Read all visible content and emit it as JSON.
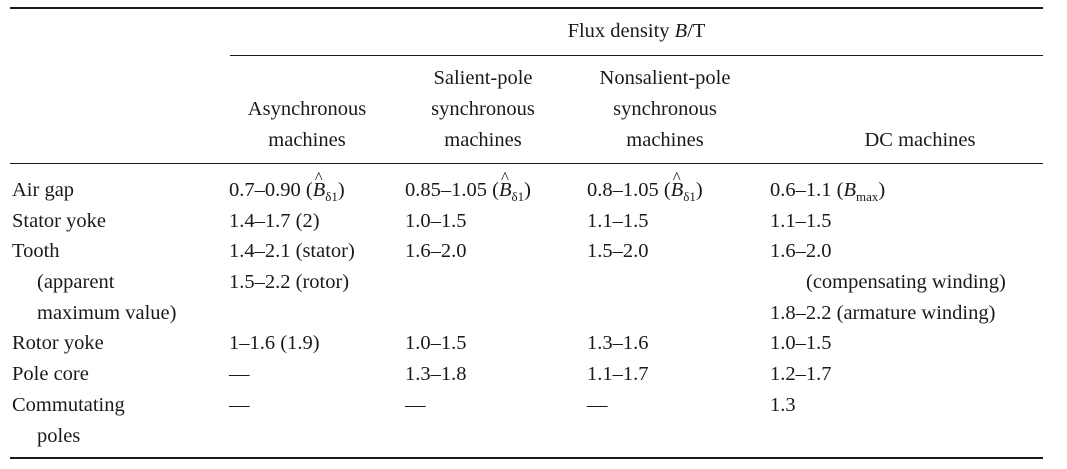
{
  "table": {
    "spanning_header": {
      "text": "Flux density ",
      "var": "B",
      "unit": "/T"
    },
    "columns": [
      {
        "lines": [
          "Asynchronous",
          "machines"
        ]
      },
      {
        "lines": [
          "Salient-pole",
          "synchronous",
          "machines"
        ]
      },
      {
        "lines": [
          "Nonsalient-pole",
          "synchronous",
          "machines"
        ]
      },
      {
        "lines": [
          "DC machines"
        ]
      }
    ],
    "rows": {
      "air_gap": {
        "label": "Air gap",
        "c1": {
          "pre": "0.7–0.90 (",
          "sym": "B",
          "sub": "δ1",
          "post": ")"
        },
        "c2": {
          "pre": "0.85–1.05 (",
          "sym": "B",
          "sub": "δ1",
          "post": ")"
        },
        "c3": {
          "pre": "0.8–1.05 (",
          "sym": "B",
          "sub": "δ1",
          "post": ")"
        },
        "c4": {
          "pre": "0.6–1.1 (",
          "sym": "B",
          "sub": "max",
          "post": ")"
        }
      },
      "stator_yoke": {
        "label": "Stator yoke",
        "c1": "1.4–1.7 (2)",
        "c2": "1.0–1.5",
        "c3": "1.1–1.5",
        "c4": "1.1–1.5"
      },
      "tooth": {
        "label": "Tooth",
        "label_cont": [
          "(apparent",
          "maximum value)"
        ],
        "c1": [
          "1.4–2.1 (stator)",
          "1.5–2.2 (rotor)"
        ],
        "c2": "1.6–2.0",
        "c3": "1.5–2.0",
        "c4": [
          "1.6–2.0",
          "(compensating winding)",
          "1.8–2.2 (armature winding)"
        ]
      },
      "rotor_yoke": {
        "label": "Rotor yoke",
        "c1": "1–1.6 (1.9)",
        "c2": "1.0–1.5",
        "c3": "1.3–1.6",
        "c4": "1.0–1.5"
      },
      "pole_core": {
        "label": "Pole core",
        "c1": "—",
        "c2": "1.3–1.8",
        "c3": "1.1–1.7",
        "c4": "1.2–1.7"
      },
      "commutating_poles": {
        "label": "Commutating",
        "label_cont": "poles",
        "c1": "—",
        "c2": "—",
        "c3": "—",
        "c4": "1.3"
      }
    }
  }
}
